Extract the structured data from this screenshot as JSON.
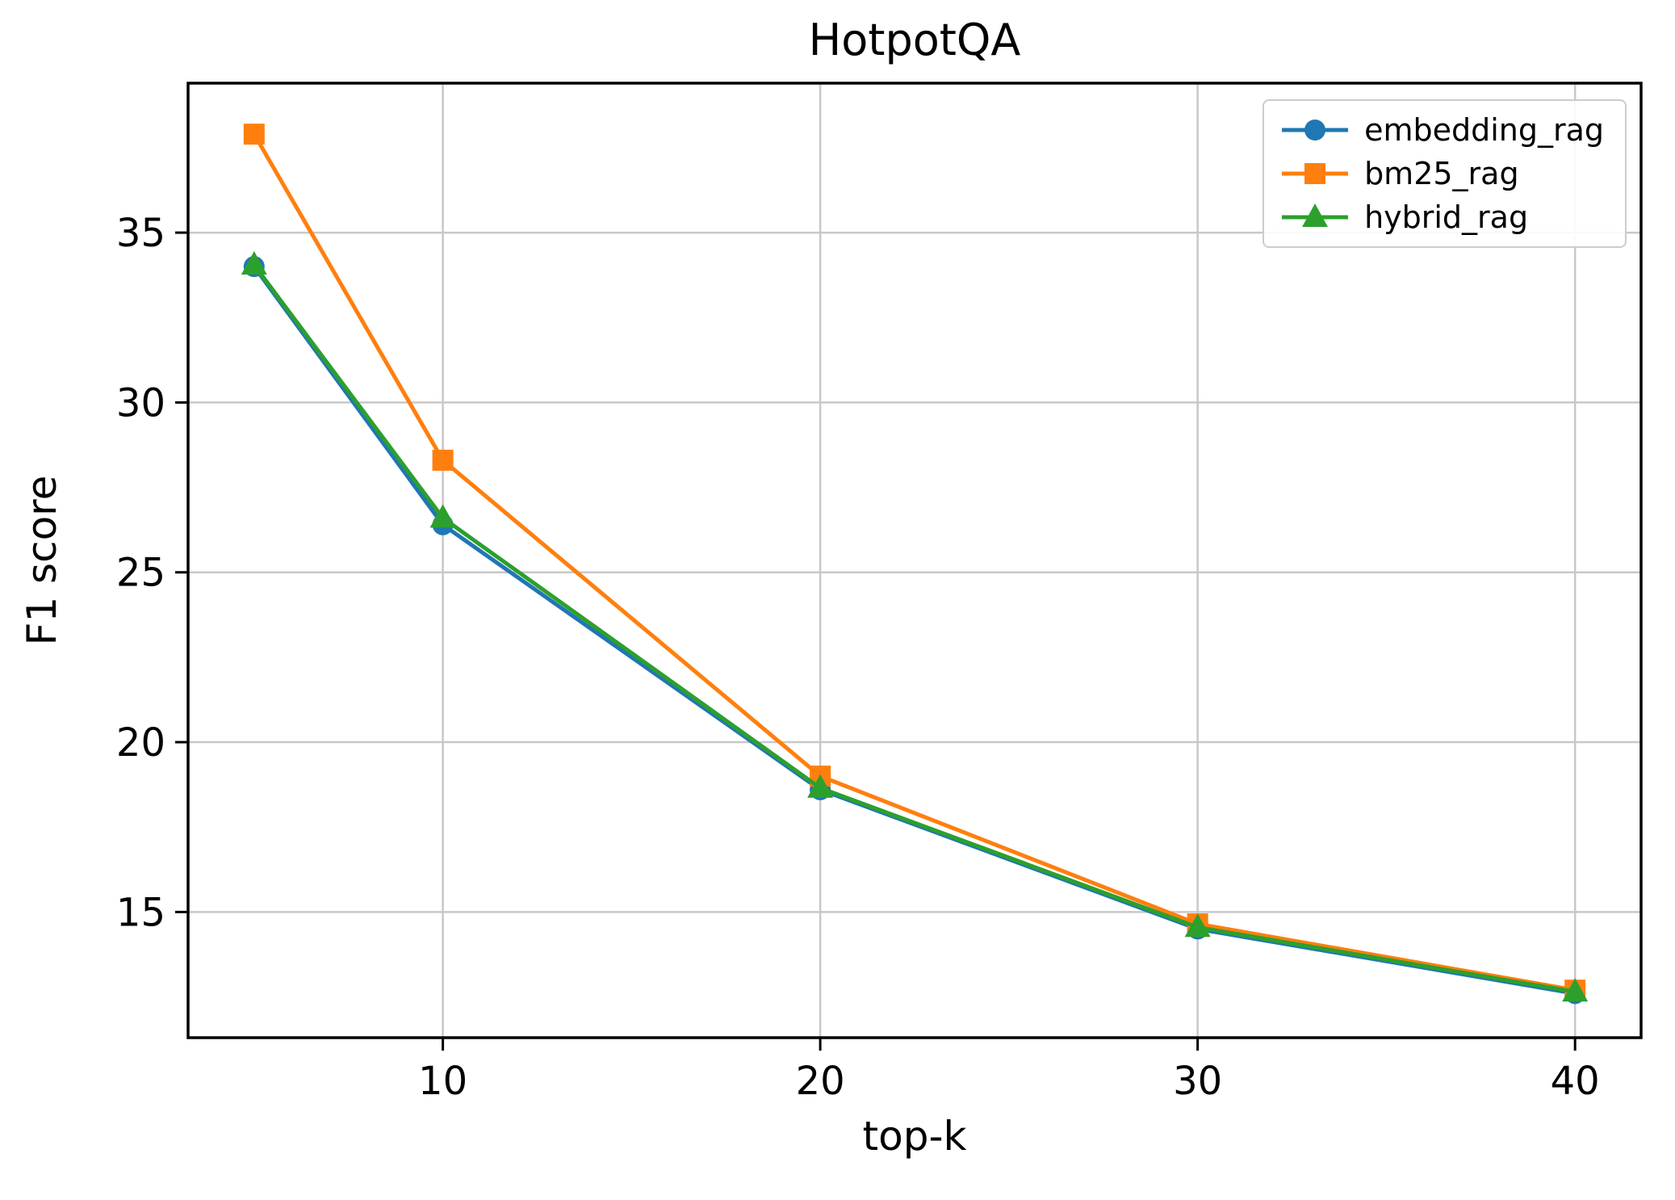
{
  "chart_data": {
    "type": "line",
    "title": "HotpotQA",
    "xlabel": "top-k",
    "ylabel": "F1 score",
    "x": [
      5,
      10,
      20,
      30,
      40
    ],
    "series": [
      {
        "name": "embedding_rag",
        "color": "#1f77b4",
        "marker": "circle",
        "values": [
          34.0,
          26.4,
          18.6,
          14.5,
          12.6
        ]
      },
      {
        "name": "bm25_rag",
        "color": "#ff7f0e",
        "marker": "square",
        "values": [
          37.9,
          28.3,
          19.0,
          14.65,
          12.7
        ]
      },
      {
        "name": "hybrid_rag",
        "color": "#2ca02c",
        "marker": "triangle",
        "values": [
          34.05,
          26.6,
          18.65,
          14.55,
          12.65
        ]
      }
    ],
    "xlim": [
      3.25,
      41.75
    ],
    "ylim": [
      11.3,
      39.4
    ],
    "xticks": [
      10,
      20,
      30,
      40
    ],
    "yticks": [
      15,
      20,
      25,
      30,
      35
    ],
    "grid": true,
    "legend_position": "upper right",
    "grid_color": "#c8c8c8",
    "spine_color": "#000000",
    "background": "#ffffff"
  }
}
